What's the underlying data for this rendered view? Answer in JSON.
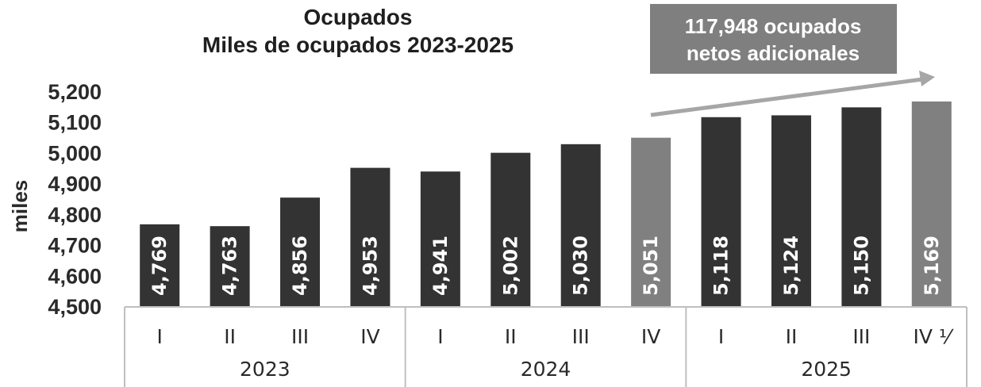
{
  "chart_data": {
    "type": "bar",
    "title": "Ocupados",
    "subtitle": "Miles de ocupados 2023-2025",
    "ylabel": "miles",
    "ylim": [
      4500,
      5200
    ],
    "yticks": [
      "5,200",
      "5,100",
      "5,000",
      "4,900",
      "4,800",
      "4,700",
      "4,600",
      "4,500"
    ],
    "ytick_values": [
      5200,
      5100,
      5000,
      4900,
      4800,
      4700,
      4600,
      4500
    ],
    "categories": [
      "I",
      "II",
      "III",
      "IV",
      "I",
      "II",
      "III",
      "IV",
      "I",
      "II",
      "III",
      "IV ⅟"
    ],
    "years": [
      "2023",
      "2024",
      "2025"
    ],
    "values": [
      4769,
      4763,
      4856,
      4953,
      4941,
      5002,
      5030,
      5051,
      5118,
      5124,
      5150,
      5169
    ],
    "value_labels": [
      "4,769",
      "4,763",
      "4,856",
      "4,953",
      "4,941",
      "5,002",
      "5,030",
      "5,051",
      "5,118",
      "5,124",
      "5,150",
      "5,169"
    ],
    "highlighted": [
      false,
      false,
      false,
      false,
      false,
      false,
      false,
      true,
      false,
      false,
      false,
      true
    ],
    "annotation": {
      "line1": "117,948 ocupados",
      "line2": "netos adicionales"
    },
    "grid": false,
    "colors": {
      "bar": "#333333",
      "highlight": "#808080",
      "annotation_bg": "#7f7f7f",
      "arrow": "#a6a6a6",
      "axis_lines": "#bfbfbf"
    }
  }
}
